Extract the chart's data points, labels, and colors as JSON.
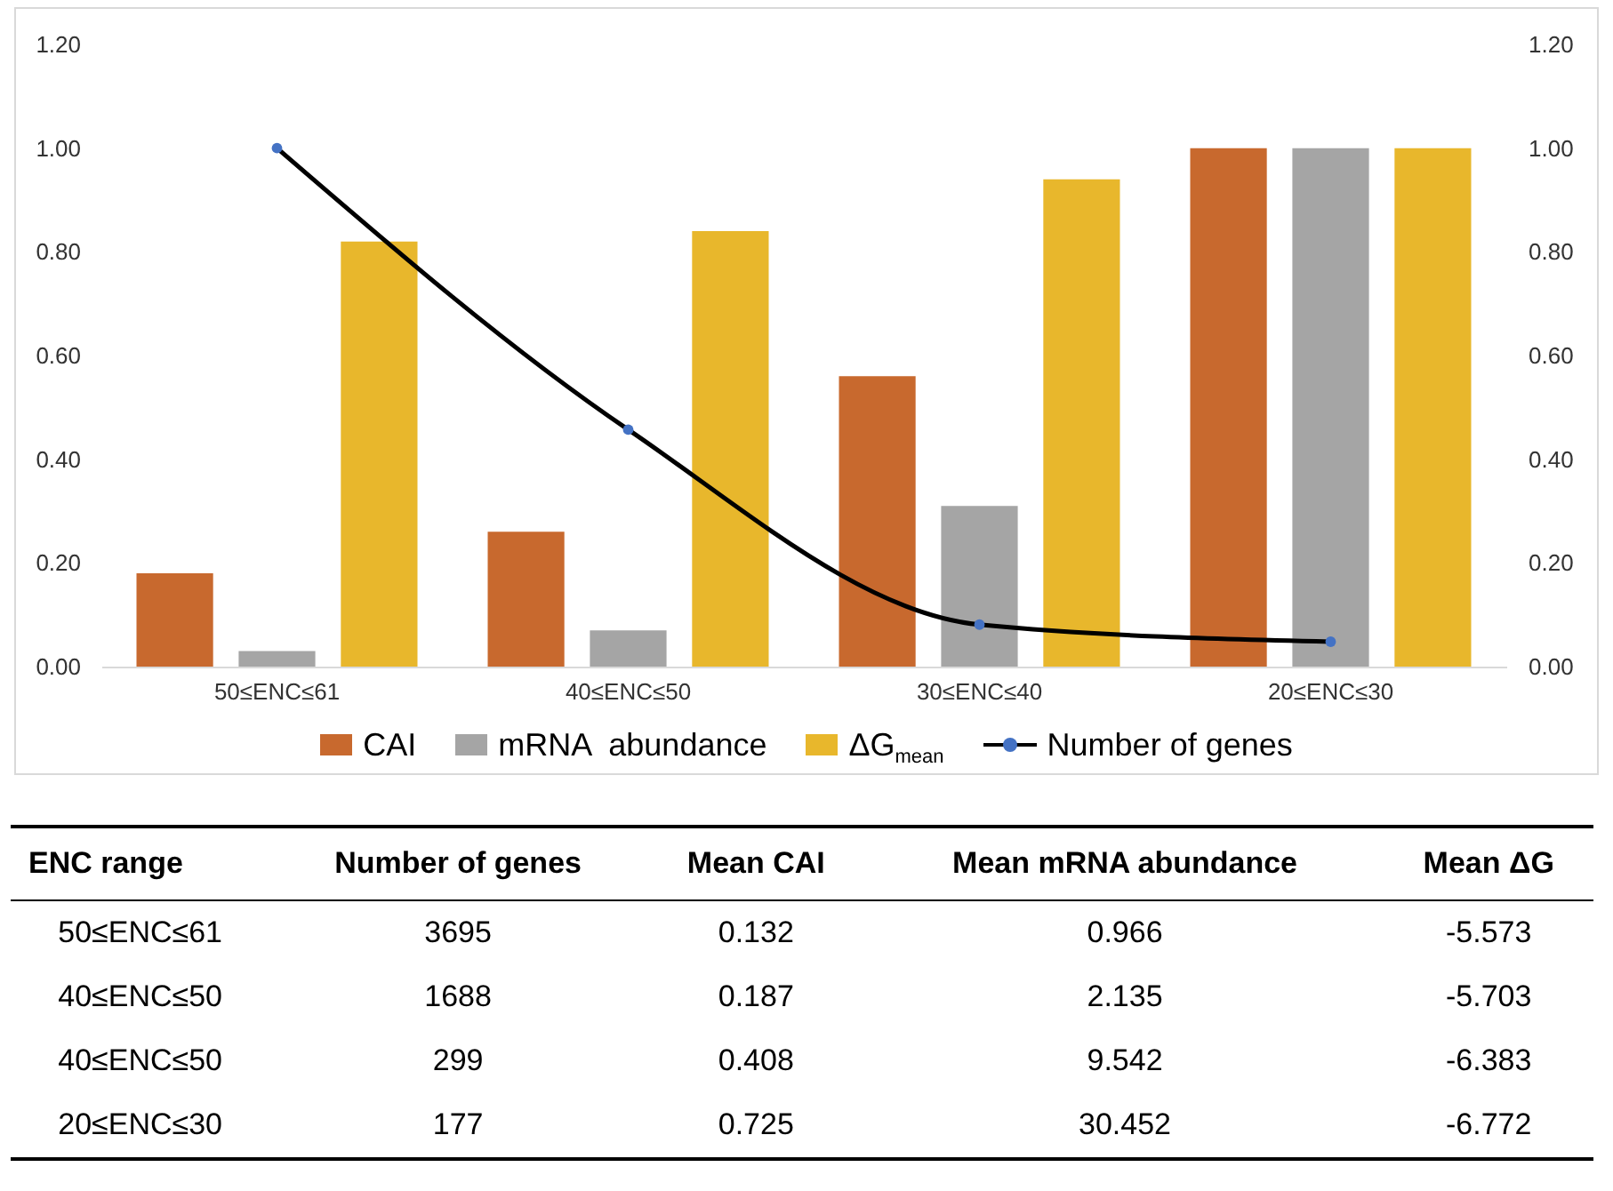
{
  "chart_data": {
    "type": "bar",
    "categories": [
      "50≤ENC≤61",
      "40≤ENC≤50",
      "30≤ENC≤40",
      "20≤ENC≤30"
    ],
    "series": [
      {
        "name": "CAI",
        "color": "#c8692e",
        "values": [
          0.18,
          0.26,
          0.56,
          1.0
        ]
      },
      {
        "name": "mRNA  abundance",
        "color": "#a5a5a5",
        "values": [
          0.03,
          0.07,
          0.31,
          1.0
        ]
      },
      {
        "name": "ΔG$_{mean}$",
        "color": "#e8b72c",
        "values": [
          0.82,
          0.84,
          0.94,
          1.0
        ]
      },
      {
        "name": "Number of genes",
        "type": "line",
        "axis": "y2",
        "color": "#000000",
        "values": [
          1.0,
          0.457,
          0.081,
          0.048
        ]
      }
    ],
    "ylim": [
      0,
      1.2
    ],
    "yticks": [
      {
        "value": 0,
        "label": "0.00"
      },
      {
        "value": 0.2,
        "label": "0.20"
      },
      {
        "value": 0.4,
        "label": "0.40"
      },
      {
        "value": 0.6,
        "label": "0.60"
      },
      {
        "value": 0.8,
        "label": "0.80"
      },
      {
        "value": 1,
        "label": "1.00"
      },
      {
        "value": 1.2,
        "label": "1.20"
      }
    ],
    "y2lim": [
      0,
      1.2
    ],
    "y2ticks": [
      {
        "value": 0,
        "label": "0.00"
      },
      {
        "value": 0.2,
        "label": "0.20"
      },
      {
        "value": 0.4,
        "label": "0.40"
      },
      {
        "value": 0.6,
        "label": "0.60"
      },
      {
        "value": 0.8,
        "label": "0.80"
      },
      {
        "value": 1,
        "label": "1.00"
      },
      {
        "value": 1.2,
        "label": "1.20"
      }
    ],
    "marker": "circle",
    "legend": "bottom",
    "annotations": [
      "ENC range",
      "Number of genes",
      "Mean CAI",
      "Mean mRNA abundance",
      "Mean ΔG",
      "50≤ENC≤61",
      "3695",
      "0.132",
      "0.966",
      "-5.573",
      "40≤ENC≤50",
      "1688",
      "0.187",
      "2.135",
      "-5.703",
      "40≤ENC≤50",
      "299",
      "0.408",
      "9.542",
      "-6.383",
      "20≤ENC≤30",
      "177",
      "0.725",
      "30.452",
      "-6.772"
    ]
  }
}
